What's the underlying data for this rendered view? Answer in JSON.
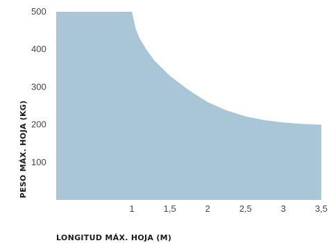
{
  "chart_data": {
    "type": "area",
    "xlabel": "LONGITUD MÁX. HOJA (M)",
    "ylabel": "PESO MÁX. HOJA (KG)",
    "x_ticks": [
      "1",
      "1,5",
      "2",
      "2,5",
      "3",
      "3,5"
    ],
    "x_tick_values": [
      1,
      1.5,
      2,
      2.5,
      3,
      3.5
    ],
    "y_ticks": [
      "100",
      "200",
      "300",
      "400",
      "500"
    ],
    "y_tick_values": [
      100,
      200,
      300,
      400,
      500
    ],
    "xlim": [
      0,
      3.5
    ],
    "ylim": [
      0,
      500
    ],
    "grid": false,
    "series": [
      {
        "x": [
          0,
          1.0,
          1.05,
          1.1,
          1.2,
          1.3,
          1.5,
          1.75,
          2.0,
          2.25,
          2.5,
          2.75,
          3.0,
          3.25,
          3.5
        ],
        "y": [
          500,
          500,
          455,
          430,
          397,
          370,
          330,
          292,
          260,
          238,
          222,
          212,
          206,
          202,
          200
        ]
      }
    ],
    "colors": {
      "fill": "#a9c6d6"
    }
  }
}
